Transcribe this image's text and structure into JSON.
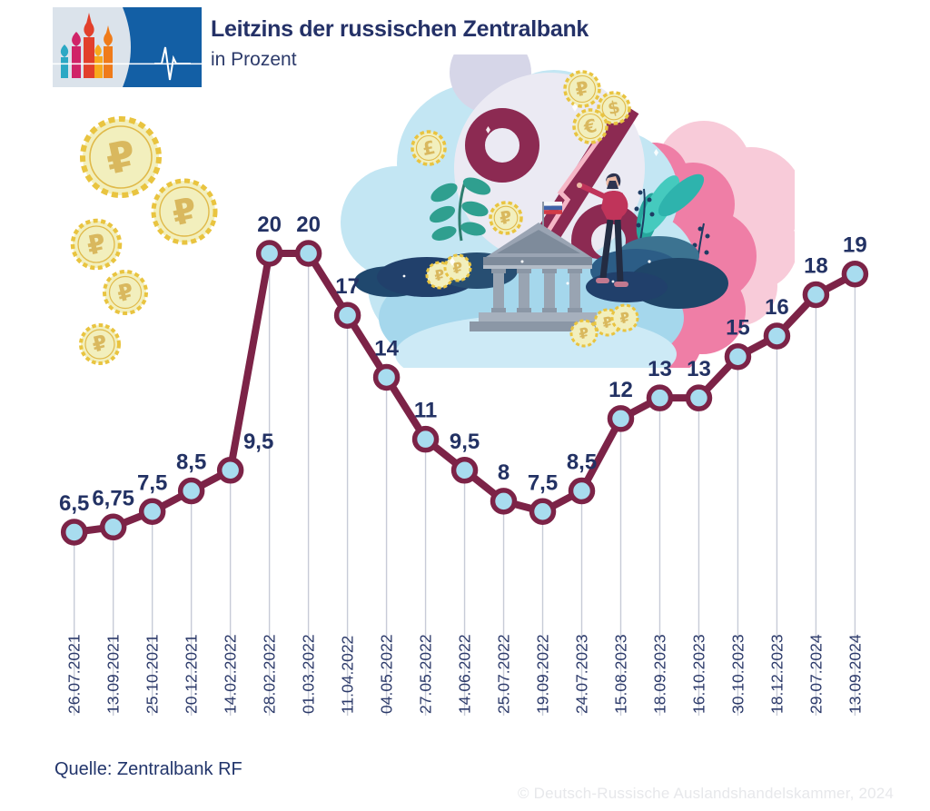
{
  "header": {
    "title": "Leitzins der russischen Zentralbank",
    "subtitle": "in Prozent"
  },
  "chart_data": {
    "type": "line",
    "title": "Leitzins der russischen Zentralbank",
    "ylabel": "in Prozent",
    "xlabel": "",
    "ylim": [
      0,
      20
    ],
    "grid": "vertical droplines from each point to axis",
    "legend": "none",
    "x": [
      "26.07.2021",
      "13.09.2021",
      "25.10.2021",
      "20.12.2021",
      "14.02.2022",
      "28.02.2022",
      "01.03.2022",
      "11.04.2022",
      "04.05.2022",
      "27.05.2022",
      "14.06.2022",
      "25.07.2022",
      "19.09.2022",
      "24.07.2023",
      "15.08.2023",
      "18.09.2023",
      "16.10.2023",
      "30.10.2023",
      "18.12.2023",
      "29.07.2024",
      "13.09.2024"
    ],
    "series": [
      {
        "name": "Leitzins der russischen Zentralbank (%)",
        "values": [
          6.5,
          6.75,
          7.5,
          8.5,
          9.5,
          20,
          20,
          17,
          14,
          11,
          9.5,
          8,
          7.5,
          8.5,
          12,
          13,
          13,
          15,
          16,
          18,
          19
        ]
      }
    ],
    "point_labels": [
      "6,5",
      "6,75",
      "7,5",
      "8,5",
      "9,5",
      "20",
      "20",
      "17",
      "14",
      "11",
      "9,5",
      "8",
      "7,5",
      "8,5",
      "12",
      "13",
      "13",
      "15",
      "16",
      "18",
      "19"
    ],
    "colors": {
      "line": "#7c2347",
      "marker_fill": "#a8dcef",
      "marker_stroke": "#7c2347",
      "value_label": "#233264",
      "date_label": "#2c3a6a",
      "dropline": "#c7cbd7"
    }
  },
  "decor": {
    "percent_symbol": "%",
    "coin_symbols": {
      "ruble": "₽",
      "euro": "€",
      "dollar": "$",
      "pound": "£"
    }
  },
  "footer": {
    "source": "Quelle: Zentralbank RF",
    "copyright": "© Deutsch-Russische Auslandshandelskammer, 2024"
  }
}
